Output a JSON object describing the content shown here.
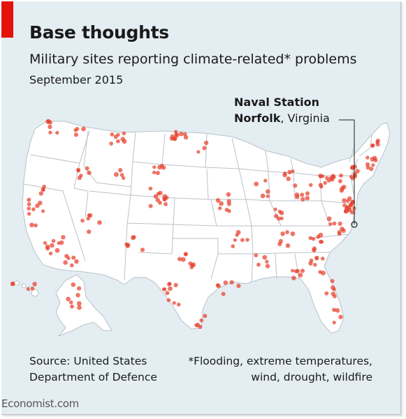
{
  "header": {
    "title": "Base thoughts",
    "subtitle": "Military sites reporting climate-related* problems",
    "date": "September 2015"
  },
  "annotation": {
    "name_line1": "Naval Station",
    "name_line2_bold": "Norfolk",
    "name_line2_rest": ", Virginia"
  },
  "footer": {
    "source_line1": "Source: United States",
    "source_line2": "Department of Defence",
    "note_line1": "*Flooding, extreme temperatures,",
    "note_line2": "wind, drought, wildfire",
    "brand": "Economist.com"
  },
  "colors": {
    "background": "#e4edf2",
    "land": "#ffffff",
    "borders": "#b8c2c8",
    "site_dot": "#e8402c",
    "accent": "#e3120b",
    "text": "#1a1a1a"
  }
}
